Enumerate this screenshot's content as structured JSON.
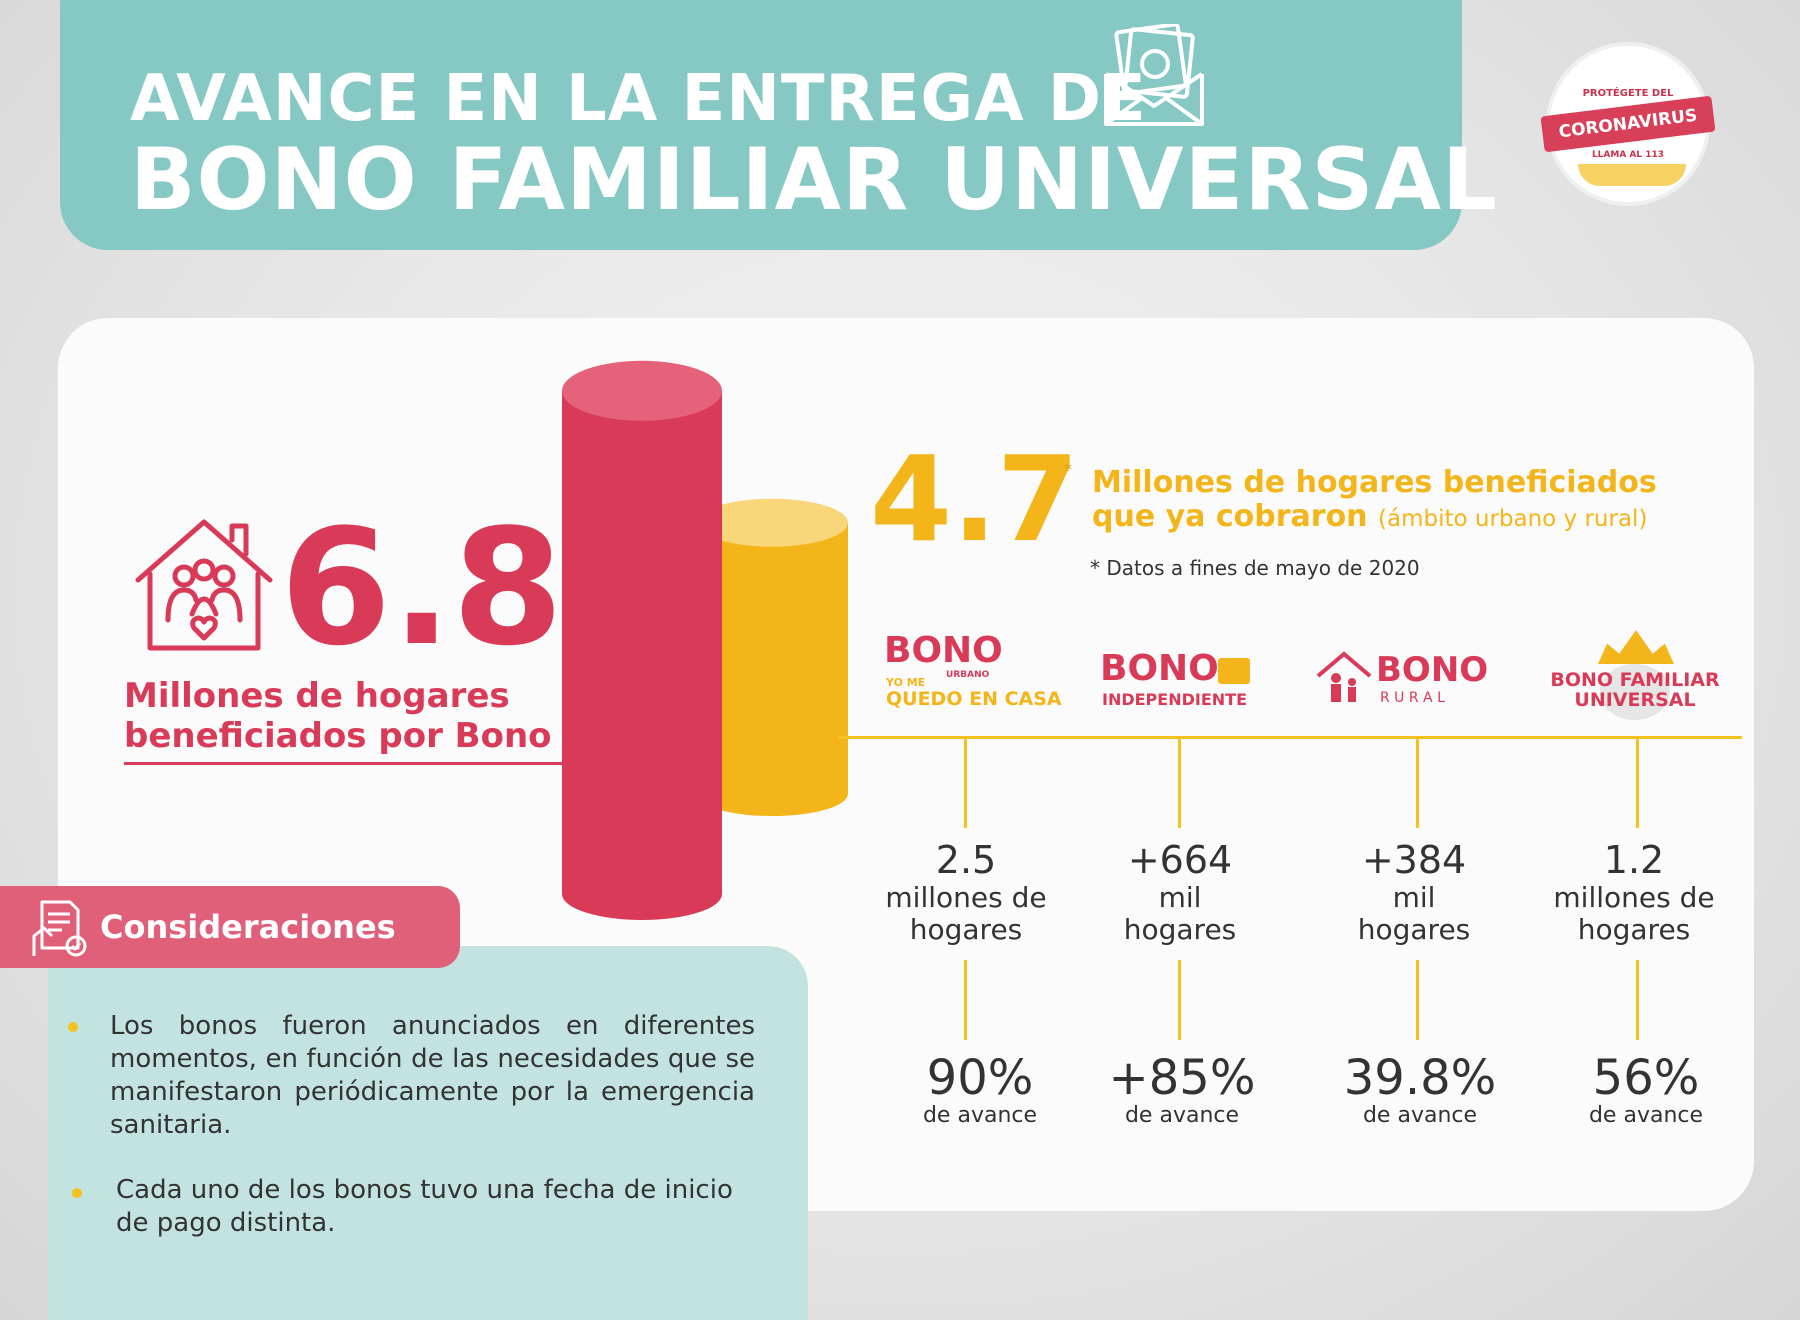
{
  "header": {
    "title_line1": "AVANCE EN LA ENTREGA DE",
    "title_line2": "BONO FAMILIAR UNIVERSAL",
    "icon": "money-envelope-icon",
    "badge": {
      "top_text": "PROTÉGETE DEL",
      "ribbon_text": "CORONAVIRUS",
      "bottom_text": "LLAMA AL 113"
    }
  },
  "left_stat": {
    "icon": "house-family-icon",
    "value": "6.8",
    "label_line1": "Millones de hogares",
    "label_line2": "beneficiados por Bono"
  },
  "right_stat": {
    "value": "4.7",
    "asterisk": "*",
    "label_line1": "Millones de hogares beneficiados",
    "label_line2": "que ya cobraron",
    "label_sub": "(ámbito urbano y rural)",
    "note": "* Datos a fines de mayo de 2020"
  },
  "chart_data": {
    "type": "bar",
    "categories": [
      "Millones de hogares beneficiados por Bono",
      "Millones de hogares beneficiados que ya cobraron"
    ],
    "values": [
      6.8,
      4.7
    ],
    "colors": [
      "#d83a57",
      "#f4b51a"
    ]
  },
  "bonos": [
    {
      "logo_line1": "BONO",
      "logo_small_1": "URBANO",
      "logo_small_2": "YO ME",
      "logo_line2": "QUEDO EN CASA",
      "value": "2.5",
      "unit_line1": "millones de",
      "unit_line2": "hogares",
      "percent": "90%",
      "percent_label": "de avance"
    },
    {
      "logo_line1": "BONO",
      "logo_line2": "INDEPENDIENTE",
      "value": "+664",
      "unit_line1": "mil",
      "unit_line2": "hogares",
      "percent": "+85%",
      "percent_label": "de avance"
    },
    {
      "logo_line1": "BONO",
      "logo_line2": "R U R A L",
      "value": "+384",
      "unit_line1": "mil",
      "unit_line2": "hogares",
      "percent": "39.8%",
      "percent_label": "de avance"
    },
    {
      "logo_line1": "BONO FAMILIAR",
      "logo_line2": "UNIVERSAL",
      "value": "1.2",
      "unit_line1": "millones de",
      "unit_line2": "hogares",
      "percent": "56%",
      "percent_label": "de avance"
    }
  ],
  "considerations": {
    "title": "Consideraciones",
    "icon": "document-check-icon",
    "items": [
      "Los bonos fueron anunciados en diferentes momentos, en función de las necesidades que se manifestaron periódicamente por la emergencia sanitaria.",
      "Cada uno de los bonos tuvo una fecha de inicio de pago distinta."
    ]
  },
  "colors": {
    "teal": "#86c8c3",
    "red": "#d83a57",
    "yellow": "#f4b51a",
    "light_teal": "#c2e3df"
  }
}
